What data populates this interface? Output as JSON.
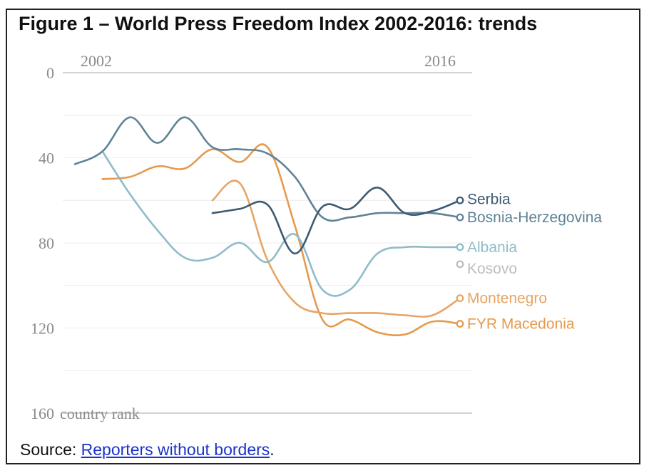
{
  "figure": {
    "title": "Figure 1 – World Press Freedom Index 2002-2016: trends",
    "source_prefix": "Source: ",
    "source_link": "Reporters without borders",
    "source_suffix": "."
  },
  "chart_data": {
    "type": "line",
    "title": "Figure 1 – World Press Freedom Index 2002-2016: trends",
    "xlabel": "",
    "ylabel": "country rank",
    "x_tick_labels": [
      "2002",
      "2016"
    ],
    "y_ticks": [
      "0",
      "40",
      "80",
      "120",
      "160"
    ],
    "xlim": [
      2002,
      2016
    ],
    "ylim": [
      0,
      160
    ],
    "y_inverted": true,
    "grid": true,
    "series": [
      {
        "name": "Serbia",
        "color": "#3d5a73",
        "x": [
          2007,
          2008,
          2009,
          2010,
          2011,
          2012,
          2013,
          2014,
          2015,
          2016
        ],
        "y": [
          66,
          64,
          62,
          85,
          63,
          64,
          54,
          66,
          65,
          60
        ]
      },
      {
        "name": "Bosnia-Herzegovina",
        "color": "#5f8397",
        "x": [
          2002,
          2003,
          2004,
          2005,
          2006,
          2007,
          2008,
          2009,
          2010,
          2011,
          2012,
          2013,
          2014,
          2015,
          2016
        ],
        "y": [
          43,
          37,
          21,
          33,
          21,
          35,
          36,
          38,
          49,
          68,
          68,
          66,
          66,
          66,
          68
        ]
      },
      {
        "name": "Albania",
        "color": "#8fbcc9",
        "x": [
          2003,
          2004,
          2005,
          2006,
          2007,
          2008,
          2009,
          2010,
          2011,
          2012,
          2013,
          2014,
          2015,
          2016
        ],
        "y": [
          37,
          57,
          74,
          87,
          87,
          80,
          89,
          76,
          102,
          102,
          85,
          82,
          82,
          82
        ]
      },
      {
        "name": "Kosovo",
        "color": "#bdbdbd",
        "x": [
          2016
        ],
        "y": [
          90
        ]
      },
      {
        "name": "Montenegro",
        "color": "#e6a566",
        "x": [
          2007,
          2008,
          2009,
          2010,
          2011,
          2012,
          2013,
          2014,
          2015,
          2016
        ],
        "y": [
          60,
          52,
          88,
          108,
          113,
          113,
          113,
          114,
          114,
          106
        ]
      },
      {
        "name": "FYR Macedonia",
        "color": "#e59a4e",
        "x": [
          2003,
          2004,
          2005,
          2006,
          2007,
          2008,
          2009,
          2010,
          2011,
          2012,
          2013,
          2014,
          2015,
          2016
        ],
        "y": [
          50,
          49,
          44,
          45,
          36,
          42,
          35,
          72,
          116,
          116,
          122,
          123,
          117,
          118
        ]
      }
    ]
  }
}
